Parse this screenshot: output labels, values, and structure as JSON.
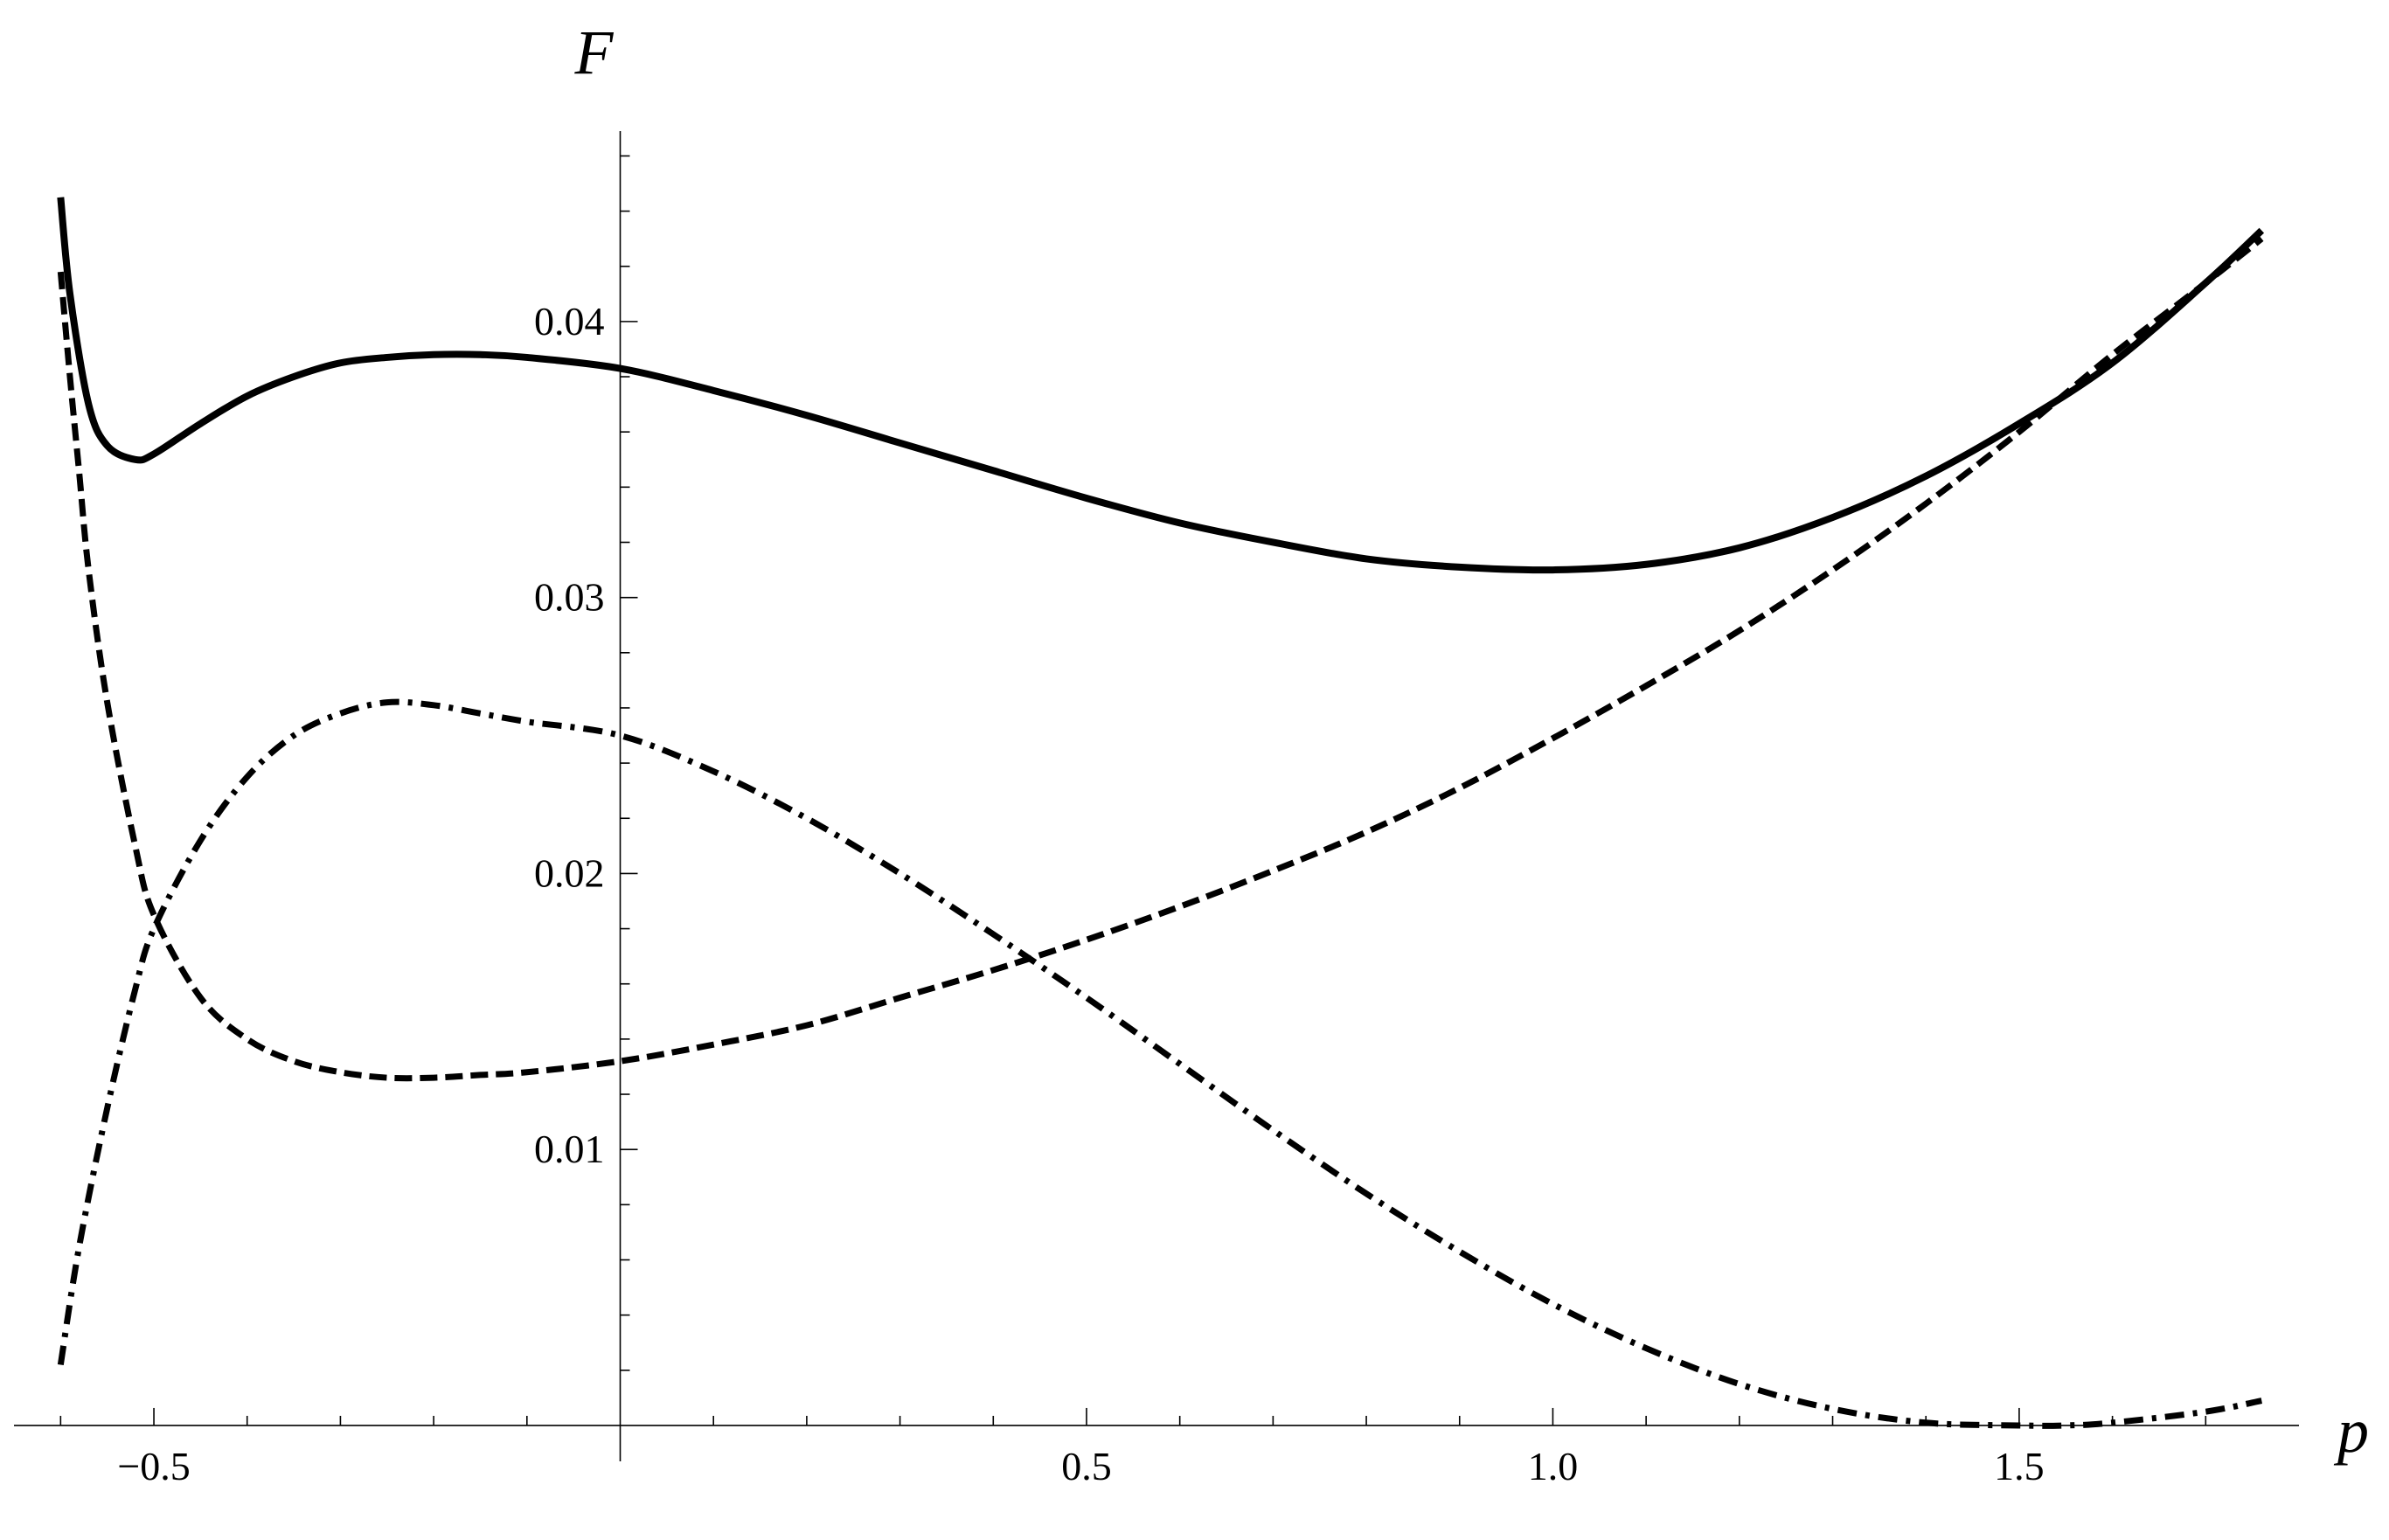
{
  "chart_data": {
    "type": "line",
    "xlabel": "p",
    "ylabel": "F",
    "xlim": [
      -0.65,
      1.8
    ],
    "ylim": [
      -0.0013,
      0.0469
    ],
    "grid": false,
    "x_ticks": [
      {
        "value": -0.5,
        "label": "−0.5"
      },
      {
        "value": 0.5,
        "label": "0.5"
      },
      {
        "value": 1.0,
        "label": "1.0"
      },
      {
        "value": 1.5,
        "label": "1.5"
      }
    ],
    "y_ticks": [
      {
        "value": 0.01,
        "label": "0.01"
      },
      {
        "value": 0.02,
        "label": "0.02"
      },
      {
        "value": 0.03,
        "label": "0.03"
      },
      {
        "value": 0.04,
        "label": "0.04"
      }
    ],
    "series": [
      {
        "style": "solid",
        "x": [
          -0.6,
          -0.59,
          -0.57,
          -0.55,
          -0.52,
          -0.5,
          -0.45,
          -0.4,
          -0.35,
          -0.3,
          -0.25,
          -0.2,
          -0.15,
          -0.1,
          0.0,
          0.1,
          0.2,
          0.3,
          0.4,
          0.5,
          0.6,
          0.7,
          0.8,
          0.9,
          1.0,
          1.1,
          1.2,
          1.3,
          1.4,
          1.5,
          1.6,
          1.7,
          1.76
        ],
        "y": [
          0.0445,
          0.041,
          0.037,
          0.0355,
          0.035,
          0.0352,
          0.0363,
          0.0373,
          0.038,
          0.0385,
          0.0387,
          0.0388,
          0.0388,
          0.0387,
          0.0383,
          0.0375,
          0.0366,
          0.0356,
          0.0346,
          0.0336,
          0.0327,
          0.032,
          0.0314,
          0.0311,
          0.031,
          0.0312,
          0.0318,
          0.0329,
          0.0344,
          0.0363,
          0.0385,
          0.0414,
          0.0433
        ]
      },
      {
        "style": "dashed",
        "x": [
          -0.6,
          -0.59,
          -0.58,
          -0.57,
          -0.55,
          -0.52,
          -0.5,
          -0.45,
          -0.4,
          -0.35,
          -0.3,
          -0.25,
          -0.2,
          -0.15,
          -0.1,
          0.0,
          0.1,
          0.2,
          0.3,
          0.4,
          0.5,
          0.6,
          0.7,
          0.8,
          0.9,
          1.0,
          1.1,
          1.2,
          1.3,
          1.4,
          1.5,
          1.6,
          1.7,
          1.76
        ],
        "y": [
          0.0418,
          0.038,
          0.0345,
          0.031,
          0.0262,
          0.021,
          0.0185,
          0.0155,
          0.014,
          0.0132,
          0.0128,
          0.0126,
          0.0126,
          0.0127,
          0.0128,
          0.0132,
          0.0138,
          0.0145,
          0.0155,
          0.0165,
          0.0176,
          0.0188,
          0.0201,
          0.0215,
          0.0231,
          0.0249,
          0.0268,
          0.0288,
          0.031,
          0.0334,
          0.036,
          0.0388,
          0.0414,
          0.043
        ]
      },
      {
        "style": "dashdot",
        "x": [
          -0.6,
          -0.58,
          -0.55,
          -0.52,
          -0.5,
          -0.45,
          -0.4,
          -0.35,
          -0.3,
          -0.25,
          -0.2,
          -0.15,
          -0.1,
          0.0,
          0.1,
          0.2,
          0.3,
          0.4,
          0.5,
          0.6,
          0.7,
          0.8,
          0.9,
          1.0,
          1.1,
          1.2,
          1.3,
          1.4,
          1.5,
          1.55,
          1.6,
          1.7,
          1.76
        ],
        "y": [
          0.0022,
          0.0065,
          0.0115,
          0.0158,
          0.018,
          0.0212,
          0.0235,
          0.025,
          0.0258,
          0.0262,
          0.0261,
          0.0258,
          0.0255,
          0.025,
          0.0237,
          0.022,
          0.02,
          0.0178,
          0.0155,
          0.0131,
          0.0107,
          0.0084,
          0.0063,
          0.0044,
          0.0028,
          0.0015,
          0.0006,
          0.0001,
          0.0,
          0.0,
          0.0001,
          0.0005,
          0.0009
        ]
      }
    ]
  }
}
